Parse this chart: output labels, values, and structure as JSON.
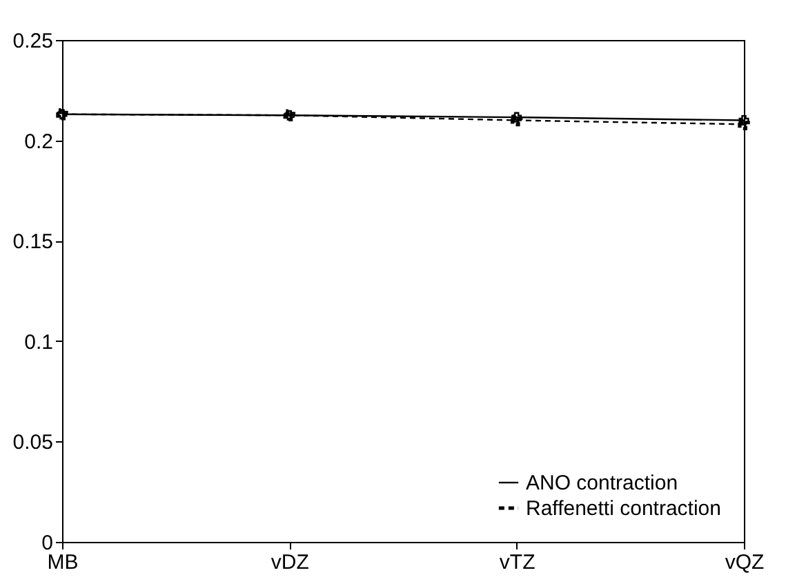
{
  "chart_data": {
    "type": "line",
    "categories": [
      "MB",
      "vDZ",
      "vTZ",
      "vQZ"
    ],
    "series": [
      {
        "name": "ANO contraction",
        "color": "#000000",
        "line_style": "solid",
        "values": [
          0.213,
          0.2125,
          0.2115,
          0.21
        ]
      },
      {
        "name": "Raffenetti contraction",
        "color": "#000000",
        "line_style": "dashed",
        "values": [
          0.213,
          0.2125,
          0.21,
          0.208
        ]
      }
    ],
    "ylim": [
      0,
      0.25
    ],
    "yticks": [
      0,
      0.05,
      0.1,
      0.15,
      0.2,
      0.25
    ],
    "grid": false,
    "legend": "bottom right",
    "marker": "cross"
  }
}
